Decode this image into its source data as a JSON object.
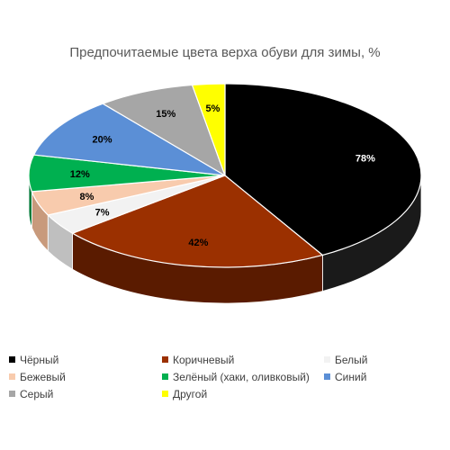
{
  "chart_data": {
    "type": "pie",
    "title": "Предпочитаемые цвета верха обуви для зимы, %",
    "slices": [
      {
        "label": "Чёрный",
        "value": 78,
        "display": "78%",
        "color": "#000000",
        "side_color": "#1a1a1a",
        "text_color": "#ffffff"
      },
      {
        "label": "Коричневый",
        "value": 42,
        "display": "42%",
        "color": "#9b3000",
        "side_color": "#5a1b00",
        "text_color": "#000000"
      },
      {
        "label": "Белый",
        "value": 7,
        "display": "7%",
        "color": "#f2f2f2",
        "side_color": "#bfbfbf",
        "text_color": "#000000"
      },
      {
        "label": "Бежевый",
        "value": 8,
        "display": "8%",
        "color": "#f8cbad",
        "side_color": "#c89a7c",
        "text_color": "#000000"
      },
      {
        "label": "Зелёный (хаки, оливковый)",
        "value": 12,
        "display": "12%",
        "color": "#00b050",
        "side_color": "#007a38",
        "text_color": "#000000"
      },
      {
        "label": "Синий",
        "value": 20,
        "display": "20%",
        "color": "#5b8fd6",
        "side_color": "#3d66a3",
        "text_color": "#000000"
      },
      {
        "label": "Серый",
        "value": 15,
        "display": "15%",
        "color": "#a6a6a6",
        "side_color": "#7a7a7a",
        "text_color": "#000000"
      },
      {
        "label": "Другой",
        "value": 5,
        "display": "5%",
        "color": "#ffff00",
        "side_color": "#c8c800",
        "text_color": "#000000"
      }
    ],
    "legend_position": "bottom",
    "style": "3d-pie"
  }
}
